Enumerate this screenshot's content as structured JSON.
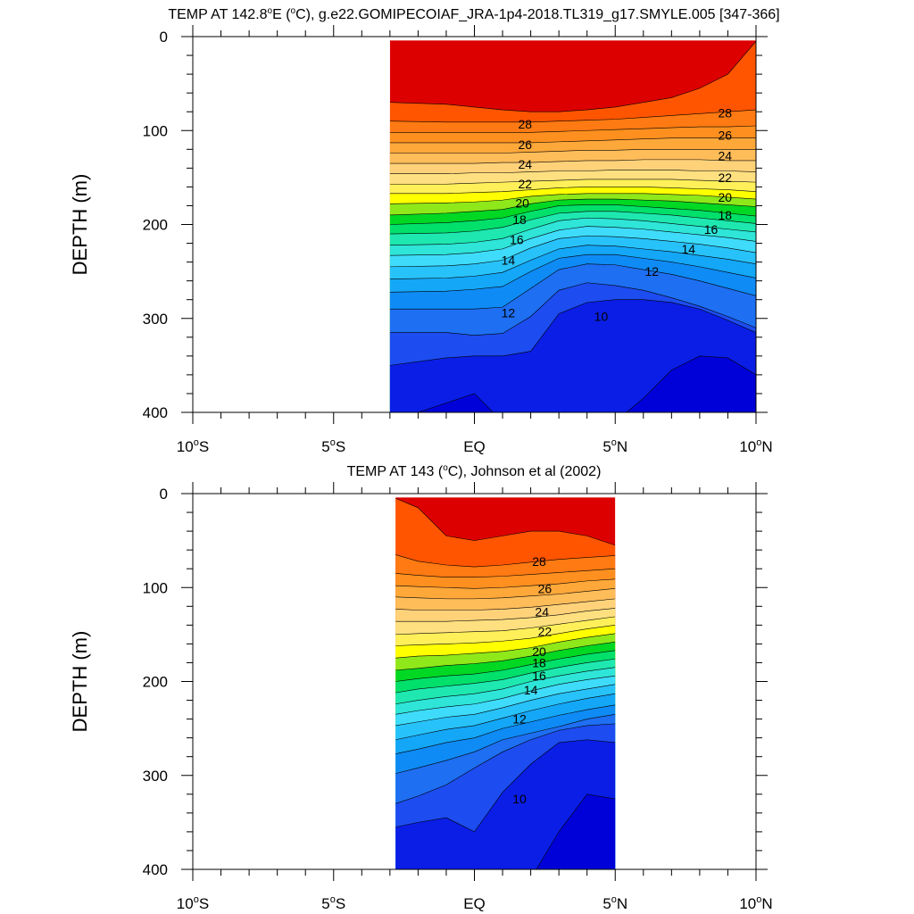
{
  "chart_data": [
    {
      "type": "contour",
      "title": "TEMP AT 142.8°E (°C), g.e22.GOMIPECOIAF_JRA-1p4-2018.TL319_g17.SMYLE.005 [347-366]",
      "xlabel": "",
      "ylabel": "DEPTH (m)",
      "xlim": [
        -10,
        10
      ],
      "ylim": [
        400,
        0
      ],
      "x_ticks": [
        {
          "value": -10,
          "label": "10°S"
        },
        {
          "value": -5,
          "label": "5°S"
        },
        {
          "value": 0,
          "label": "EQ"
        },
        {
          "value": 5,
          "label": "5°N"
        },
        {
          "value": 10,
          "label": "10°N"
        }
      ],
      "y_ticks": [
        0,
        100,
        200,
        300,
        400
      ],
      "data_extent_x": [
        -3,
        10
      ],
      "contour_interval": 1,
      "x_nodes": [
        -3,
        -1,
        0,
        1,
        2,
        3,
        4,
        5,
        6,
        7,
        8,
        9,
        10
      ],
      "contours": [
        {
          "level": 29,
          "depths": [
            70,
            72,
            75,
            78,
            80,
            80,
            78,
            75,
            70,
            65,
            55,
            40,
            5
          ]
        },
        {
          "level": 28,
          "depths": [
            90,
            91,
            91,
            91,
            91,
            90,
            89,
            88,
            86,
            84,
            82,
            80,
            78
          ]
        },
        {
          "level": 27,
          "depths": [
            102,
            102,
            102,
            102,
            102,
            101,
            100,
            99,
            98,
            97,
            96,
            96,
            95
          ]
        },
        {
          "level": 26,
          "depths": [
            113,
            113,
            113,
            113,
            113,
            112,
            111,
            110,
            109,
            108,
            108,
            108,
            108
          ]
        },
        {
          "level": 25,
          "depths": [
            124,
            124,
            124,
            124,
            123,
            122,
            121,
            121,
            120,
            120,
            120,
            120,
            120
          ]
        },
        {
          "level": 24,
          "depths": [
            135,
            135,
            135,
            134,
            134,
            133,
            132,
            132,
            131,
            131,
            131,
            132,
            132
          ]
        },
        {
          "level": 23,
          "depths": [
            146,
            146,
            145,
            145,
            144,
            143,
            143,
            142,
            142,
            142,
            143,
            143,
            144
          ]
        },
        {
          "level": 22,
          "depths": [
            157,
            157,
            156,
            155,
            154,
            153,
            152,
            152,
            152,
            152,
            153,
            154,
            155
          ]
        },
        {
          "level": 21,
          "depths": [
            167,
            167,
            166,
            165,
            163,
            161,
            160,
            160,
            160,
            161,
            162,
            163,
            165
          ]
        },
        {
          "level": 20,
          "depths": [
            178,
            177,
            176,
            174,
            170,
            168,
            167,
            167,
            167,
            168,
            169,
            171,
            173
          ]
        },
        {
          "level": 19,
          "depths": [
            190,
            188,
            186,
            184,
            178,
            174,
            173,
            173,
            174,
            175,
            177,
            179,
            181
          ]
        },
        {
          "level": 18,
          "depths": [
            200,
            198,
            196,
            193,
            186,
            180,
            179,
            179,
            181,
            183,
            185,
            188,
            191
          ]
        },
        {
          "level": 17,
          "depths": [
            210,
            209,
            207,
            203,
            195,
            188,
            186,
            186,
            188,
            190,
            193,
            196,
            199
          ]
        },
        {
          "level": 16,
          "depths": [
            222,
            221,
            219,
            215,
            205,
            196,
            193,
            194,
            196,
            199,
            202,
            205,
            208
          ]
        },
        {
          "level": 15,
          "depths": [
            233,
            232,
            230,
            226,
            215,
            206,
            202,
            203,
            205,
            208,
            211,
            214,
            218
          ]
        },
        {
          "level": 14,
          "depths": [
            245,
            244,
            242,
            238,
            225,
            215,
            212,
            213,
            215,
            218,
            221,
            225,
            230
          ]
        },
        {
          "level": 13,
          "depths": [
            258,
            257,
            255,
            251,
            238,
            226,
            222,
            223,
            226,
            229,
            233,
            237,
            242
          ]
        },
        {
          "level": 12,
          "depths": [
            272,
            271,
            269,
            266,
            250,
            236,
            232,
            232,
            236,
            240,
            245,
            251,
            257
          ]
        },
        {
          "level": 11,
          "depths": [
            290,
            290,
            290,
            288,
            268,
            248,
            242,
            243,
            248,
            253,
            260,
            268,
            276
          ]
        },
        {
          "level": 10,
          "depths": [
            315,
            315,
            318,
            316,
            298,
            270,
            262,
            265,
            270,
            278,
            287,
            298,
            310
          ]
        },
        {
          "level": 9,
          "depths": [
            350,
            342,
            340,
            340,
            335,
            295,
            283,
            280,
            280,
            283,
            290,
            302,
            315
          ]
        },
        {
          "level": 8,
          "depths": [
            410,
            390,
            380,
            410,
            405,
            410,
            410,
            410,
            385,
            355,
            340,
            342,
            360
          ]
        }
      ],
      "contour_labels": [
        {
          "text": "28",
          "x": 1.8,
          "depth": 93
        },
        {
          "text": "28",
          "x": 8.9,
          "depth": 81
        },
        {
          "text": "26",
          "x": 1.8,
          "depth": 115
        },
        {
          "text": "26",
          "x": 8.9,
          "depth": 105
        },
        {
          "text": "24",
          "x": 1.8,
          "depth": 136
        },
        {
          "text": "24",
          "x": 8.9,
          "depth": 127
        },
        {
          "text": "22",
          "x": 1.8,
          "depth": 157
        },
        {
          "text": "22",
          "x": 8.9,
          "depth": 150
        },
        {
          "text": "20",
          "x": 1.7,
          "depth": 177
        },
        {
          "text": "20",
          "x": 8.9,
          "depth": 171
        },
        {
          "text": "18",
          "x": 1.6,
          "depth": 195
        },
        {
          "text": "18",
          "x": 8.9,
          "depth": 190
        },
        {
          "text": "16",
          "x": 1.5,
          "depth": 216
        },
        {
          "text": "16",
          "x": 8.4,
          "depth": 205
        },
        {
          "text": "14",
          "x": 1.2,
          "depth": 238
        },
        {
          "text": "14",
          "x": 7.6,
          "depth": 226
        },
        {
          "text": "12",
          "x": 6.3,
          "depth": 250
        },
        {
          "text": "12",
          "x": 1.2,
          "depth": 294
        },
        {
          "text": "10",
          "x": 4.5,
          "depth": 298
        }
      ]
    },
    {
      "type": "contour",
      "title": "TEMP AT 143 (°C), Johnson et al (2002)",
      "xlabel": "",
      "ylabel": "DEPTH (m)",
      "xlim": [
        -10,
        10
      ],
      "ylim": [
        400,
        0
      ],
      "x_ticks": [
        {
          "value": -10,
          "label": "10°S"
        },
        {
          "value": -5,
          "label": "5°S"
        },
        {
          "value": 0,
          "label": "EQ"
        },
        {
          "value": 5,
          "label": "5°N"
        },
        {
          "value": 10,
          "label": "10°N"
        }
      ],
      "y_ticks": [
        0,
        100,
        200,
        300,
        400
      ],
      "data_extent_x": [
        -2.8,
        5
      ],
      "contour_interval": 1,
      "x_nodes": [
        -2.8,
        -2,
        -1,
        0,
        1,
        2,
        3,
        4,
        5
      ],
      "contours": [
        {
          "level": 29,
          "depths": [
            5,
            15,
            45,
            50,
            45,
            40,
            40,
            45,
            55
          ]
        },
        {
          "level": 28,
          "depths": [
            65,
            72,
            76,
            78,
            76,
            73,
            70,
            68,
            66
          ]
        },
        {
          "level": 27,
          "depths": [
            85,
            87,
            89,
            89,
            88,
            86,
            84,
            82,
            80
          ]
        },
        {
          "level": 26,
          "depths": [
            98,
            99,
            100,
            101,
            100,
            98,
            96,
            93,
            91
          ]
        },
        {
          "level": 25,
          "depths": [
            110,
            111,
            112,
            112,
            111,
            109,
            107,
            104,
            101
          ]
        },
        {
          "level": 24,
          "depths": [
            123,
            124,
            124,
            124,
            123,
            121,
            118,
            115,
            112
          ]
        },
        {
          "level": 23,
          "depths": [
            136,
            136,
            136,
            135,
            134,
            132,
            129,
            125,
            122
          ]
        },
        {
          "level": 22,
          "depths": [
            150,
            149,
            148,
            147,
            146,
            143,
            139,
            135,
            131
          ]
        },
        {
          "level": 21,
          "depths": [
            162,
            161,
            160,
            159,
            157,
            154,
            149,
            144,
            140
          ]
        },
        {
          "level": 20,
          "depths": [
            175,
            173,
            172,
            170,
            168,
            164,
            158,
            153,
            149
          ]
        },
        {
          "level": 19,
          "depths": [
            188,
            186,
            183,
            181,
            178,
            173,
            167,
            162,
            158
          ]
        },
        {
          "level": 18,
          "depths": [
            200,
            197,
            194,
            192,
            188,
            182,
            176,
            171,
            167
          ]
        },
        {
          "level": 17,
          "depths": [
            212,
            208,
            205,
            202,
            198,
            191,
            185,
            180,
            176
          ]
        },
        {
          "level": 16,
          "depths": [
            224,
            220,
            216,
            213,
            208,
            200,
            194,
            189,
            185
          ]
        },
        {
          "level": 15,
          "depths": [
            235,
            231,
            227,
            224,
            218,
            210,
            203,
            198,
            194
          ]
        },
        {
          "level": 14,
          "depths": [
            247,
            243,
            238,
            235,
            228,
            220,
            213,
            208,
            203
          ]
        },
        {
          "level": 13,
          "depths": [
            262,
            257,
            251,
            247,
            239,
            231,
            224,
            218,
            213
          ]
        },
        {
          "level": 12,
          "depths": [
            277,
            272,
            265,
            260,
            250,
            243,
            236,
            230,
            225
          ]
        },
        {
          "level": 11,
          "depths": [
            298,
            292,
            284,
            275,
            262,
            255,
            248,
            240,
            235
          ]
        },
        {
          "level": 10,
          "depths": [
            330,
            322,
            310,
            292,
            275,
            262,
            252,
            247,
            245
          ]
        },
        {
          "level": 9,
          "depths": [
            355,
            350,
            345,
            360,
            318,
            288,
            265,
            262,
            265
          ]
        },
        {
          "level": 8,
          "depths": [
            410,
            410,
            410,
            410,
            410,
            410,
            360,
            320,
            325
          ]
        }
      ],
      "contour_labels": [
        {
          "text": "28",
          "x": 2.3,
          "depth": 72
        },
        {
          "text": "26",
          "x": 2.5,
          "depth": 101
        },
        {
          "text": "24",
          "x": 2.4,
          "depth": 126
        },
        {
          "text": "22",
          "x": 2.5,
          "depth": 147
        },
        {
          "text": "20",
          "x": 2.3,
          "depth": 168
        },
        {
          "text": "18",
          "x": 2.3,
          "depth": 180
        },
        {
          "text": "16",
          "x": 2.3,
          "depth": 194
        },
        {
          "text": "14",
          "x": 2.0,
          "depth": 209
        },
        {
          "text": "12",
          "x": 1.6,
          "depth": 240
        },
        {
          "text": "10",
          "x": 1.6,
          "depth": 325
        }
      ]
    }
  ]
}
